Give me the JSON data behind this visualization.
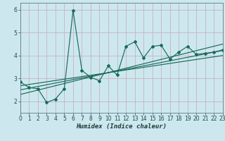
{
  "xlabel": "Humidex (Indice chaleur)",
  "bg_color": "#cce8ee",
  "line_color": "#1a6b5a",
  "grid_color": "#c8b8c8",
  "xlim": [
    0,
    23
  ],
  "ylim": [
    1.5,
    6.3
  ],
  "yticks": [
    2,
    3,
    4,
    5,
    6
  ],
  "xticks": [
    0,
    1,
    2,
    3,
    4,
    5,
    6,
    7,
    8,
    9,
    10,
    11,
    12,
    13,
    14,
    15,
    16,
    17,
    18,
    19,
    20,
    21,
    22,
    23
  ],
  "series1_x": [
    0,
    1,
    2,
    3,
    4,
    5,
    6,
    7,
    8,
    9,
    10,
    11,
    12,
    13,
    14,
    15,
    16,
    17,
    18,
    19,
    20,
    21,
    22,
    23
  ],
  "series1_y": [
    2.85,
    2.6,
    2.55,
    1.95,
    2.1,
    2.55,
    5.97,
    3.35,
    3.05,
    2.9,
    3.55,
    3.15,
    4.4,
    4.6,
    3.9,
    4.4,
    4.45,
    3.85,
    4.15,
    4.4,
    4.05,
    4.1,
    4.15,
    4.25
  ],
  "trend1_x": [
    0,
    23
  ],
  "trend1_y": [
    2.68,
    4.0
  ],
  "trend2_x": [
    0,
    23
  ],
  "trend2_y": [
    2.5,
    4.22
  ],
  "trend3_x": [
    0,
    23
  ],
  "trend3_y": [
    2.3,
    4.5
  ]
}
